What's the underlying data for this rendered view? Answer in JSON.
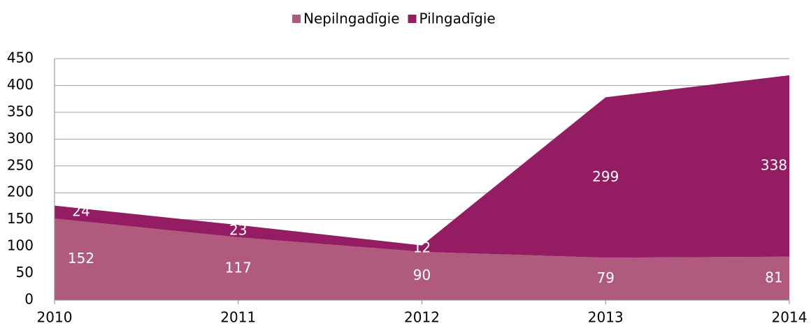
{
  "chart_data": {
    "type": "stacked_area",
    "categories": [
      "2010",
      "2011",
      "2012",
      "2013",
      "2014"
    ],
    "series": [
      {
        "name": "Nepilngadīgie",
        "color": "#b05a7e",
        "values": [
          152,
          117,
          90,
          79,
          81
        ]
      },
      {
        "name": "Pilngadīgie",
        "color": "#941c63",
        "values": [
          24,
          23,
          12,
          299,
          338
        ]
      }
    ],
    "ylim": [
      0,
      450
    ],
    "yticks": [
      0,
      50,
      100,
      150,
      200,
      250,
      300,
      350,
      400,
      450
    ],
    "grid": true,
    "legend": "top"
  }
}
